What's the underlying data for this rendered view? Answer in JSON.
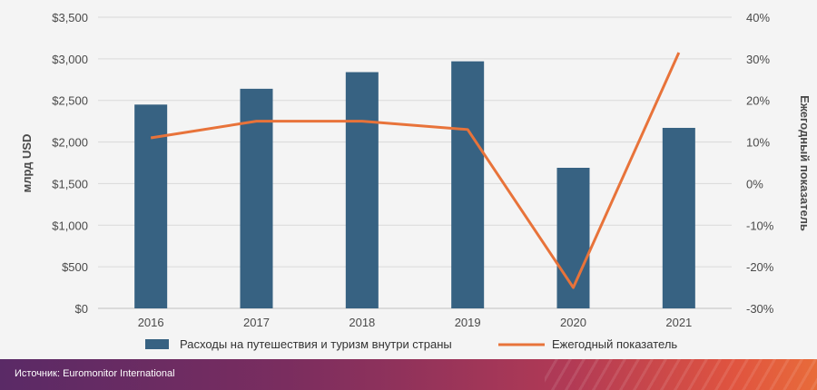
{
  "chart_data": {
    "type": "bar",
    "categories": [
      "2016",
      "2017",
      "2018",
      "2019",
      "2020",
      "2021"
    ],
    "series": [
      {
        "name": "Расходы на путешествия и туризм внутри страны",
        "type": "bar",
        "axis": "left",
        "color": "#376282",
        "values": [
          2450,
          2640,
          2840,
          2970,
          1690,
          2170
        ]
      },
      {
        "name": "Ежегодный показатель",
        "type": "line",
        "axis": "right",
        "color": "#e8733a",
        "values": [
          11,
          15,
          15,
          13,
          -25,
          31.5
        ]
      }
    ],
    "ylabel": "млрд USD",
    "y2label": "Ежегодный показатель",
    "ylim": [
      0,
      3500
    ],
    "y2lim": [
      -30,
      40
    ],
    "yticks": [
      "$0",
      "$500",
      "$1,000",
      "$1,500",
      "$2,000",
      "$2,500",
      "$3,000",
      "$3,500"
    ],
    "y2ticks": [
      "-30%",
      "-20%",
      "-10%",
      "0%",
      "10%",
      "20%",
      "30%",
      "40%"
    ],
    "grid": true,
    "legend_position": "bottom"
  },
  "footer": {
    "source": "Источник: Euromonitor International"
  }
}
